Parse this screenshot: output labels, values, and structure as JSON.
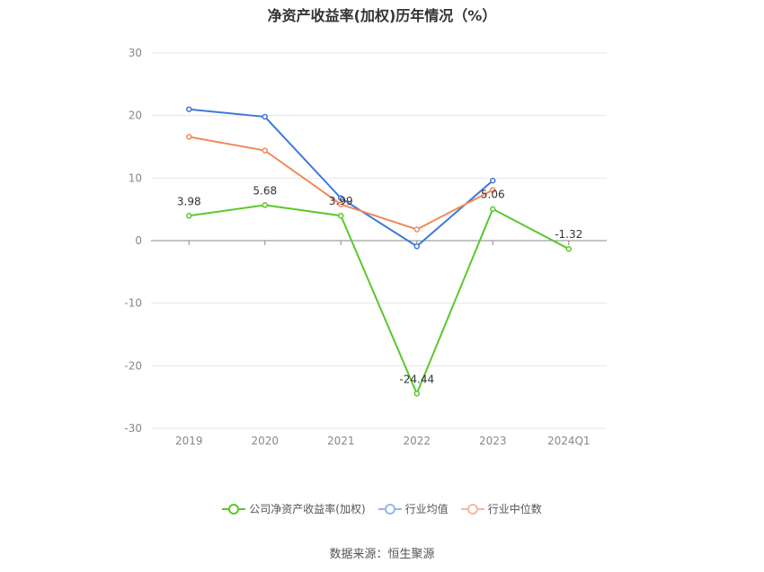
{
  "source": "数据来源：恒生聚源",
  "chart_data": {
    "type": "line",
    "title": "净资产收益率(加权)历年情况（%）",
    "categories": [
      "2019",
      "2020",
      "2021",
      "2022",
      "2023",
      "2024Q1"
    ],
    "ylim": [
      -30,
      30
    ],
    "yticks": [
      30,
      20,
      10,
      0,
      -10,
      -20,
      -30
    ],
    "grid": true,
    "legend_position": "bottom",
    "series": [
      {
        "name": "公司净资产收益率(加权)",
        "color": "#5cc72e",
        "values": [
          3.98,
          5.68,
          3.99,
          -24.44,
          5.06,
          -1.32
        ],
        "labels": true
      },
      {
        "name": "行业均值",
        "color": "#3f78db",
        "values": [
          21.0,
          19.8,
          6.8,
          -0.9,
          9.6,
          null
        ],
        "labels": false
      },
      {
        "name": "行业中位数",
        "color": "#f08a5d",
        "values": [
          16.6,
          14.4,
          5.8,
          1.8,
          8.1,
          null
        ],
        "labels": false
      }
    ],
    "data_labels": [
      "3.98",
      "5.68",
      "3.99",
      "-24.44",
      "5.06",
      "-1.32"
    ]
  }
}
